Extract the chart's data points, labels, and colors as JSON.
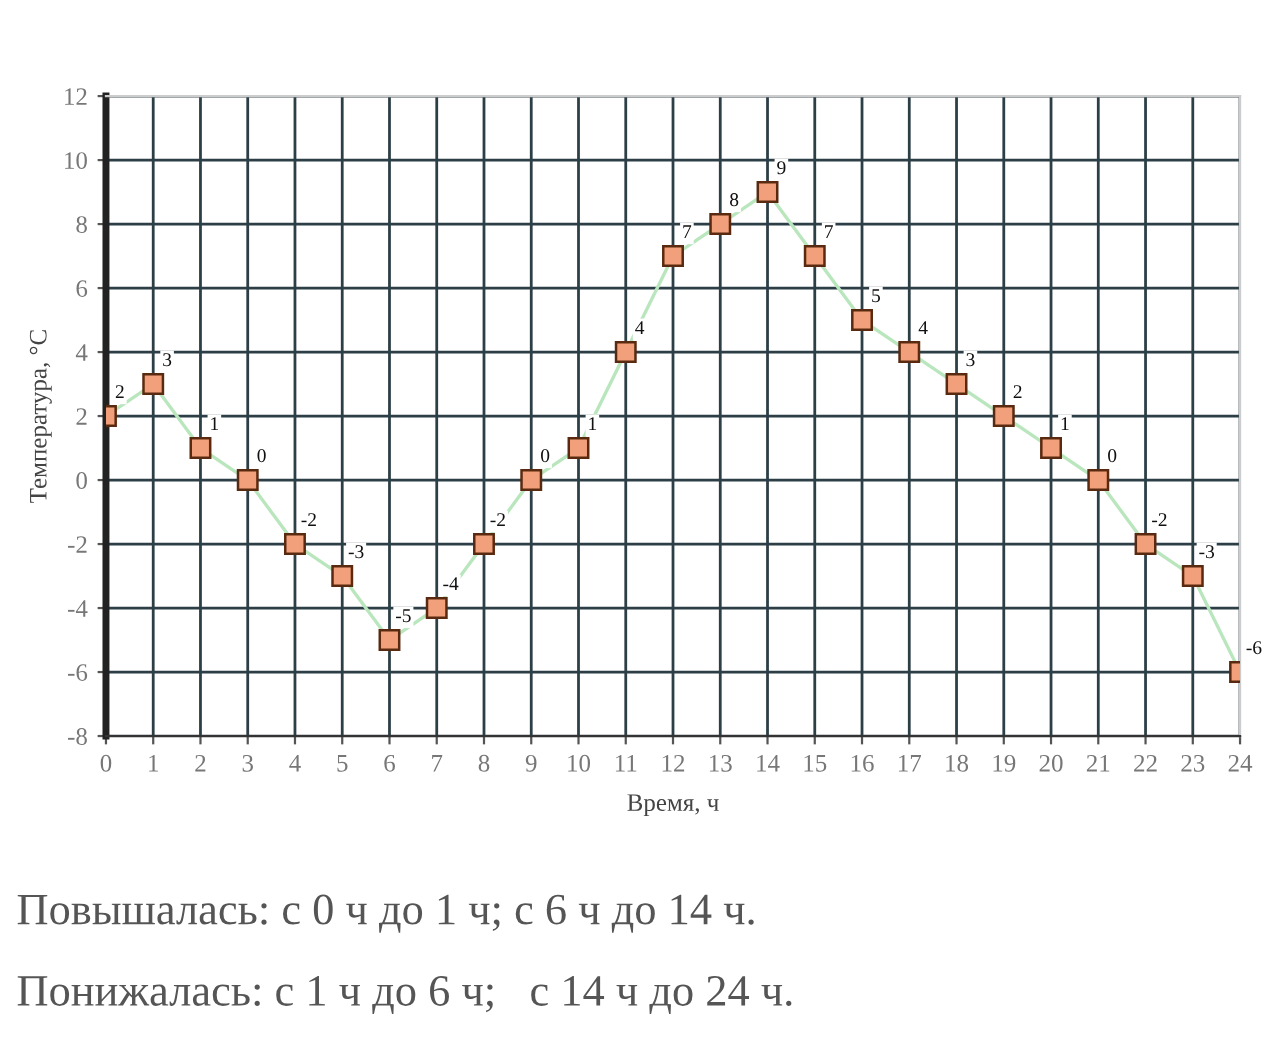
{
  "chart_data": {
    "type": "line",
    "xlabel": "Время, ч",
    "ylabel": "Температура, °C",
    "x": [
      0,
      1,
      2,
      3,
      4,
      5,
      6,
      7,
      8,
      9,
      10,
      11,
      12,
      13,
      14,
      15,
      16,
      17,
      18,
      19,
      20,
      21,
      22,
      23,
      24
    ],
    "series": [
      {
        "color": "#f2a07b",
        "values": [
          2,
          3,
          1,
          0,
          -2,
          -3,
          -5,
          -4,
          -2,
          0,
          1,
          4,
          7,
          8,
          9,
          7,
          5,
          4,
          3,
          2,
          1,
          0,
          -2,
          -3,
          -6
        ]
      }
    ],
    "xlim": [
      0,
      24
    ],
    "xticks": [
      0,
      1,
      2,
      3,
      4,
      5,
      6,
      7,
      8,
      9,
      10,
      11,
      12,
      13,
      14,
      15,
      16,
      17,
      18,
      19,
      20,
      21,
      22,
      23,
      24
    ],
    "ylim": [
      -8,
      12
    ],
    "yticks": [
      -8,
      -6,
      -4,
      -2,
      0,
      2,
      4,
      6,
      8,
      10,
      12
    ],
    "grid": true,
    "marker": "square",
    "line_style": "solid",
    "data_labels": true,
    "annotations": [
      "Повышалась: с 0 ч до 1 ч; с 6 ч до 14 ч.",
      "Понижалась: с 1 ч до 6 ч;   с 14 ч до 24 ч."
    ]
  }
}
